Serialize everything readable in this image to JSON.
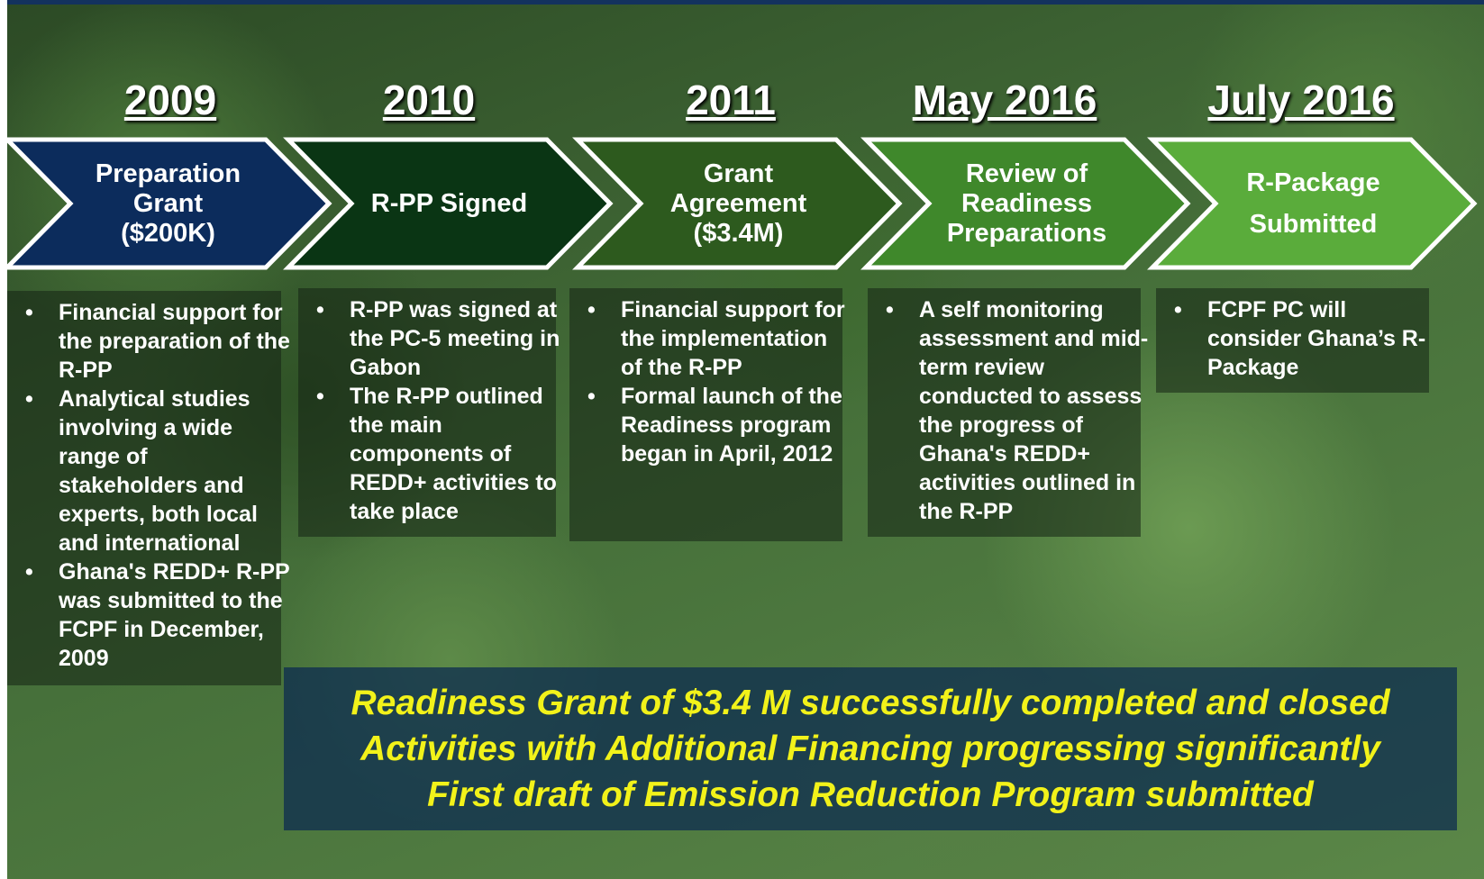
{
  "stages": [
    {
      "year": "2009",
      "title_lines": [
        "Preparation",
        "Grant",
        "($200K)"
      ],
      "color": "#0c2c5c",
      "bullets": [
        "Financial support for the preparation of the R-PP",
        "Analytical studies involving a wide range of stakeholders and experts, both local and international",
        "Ghana's REDD+ R-PP was submitted to the FCPF in December, 2009"
      ]
    },
    {
      "year": "2010",
      "title_lines": [
        "R-PP Signed"
      ],
      "color": "#0a3514",
      "bullets": [
        "R-PP was signed at the PC-5 meeting in Gabon",
        "The R-PP outlined the main components of REDD+ activities to take place"
      ]
    },
    {
      "year": "2011",
      "title_lines": [
        "Grant",
        "Agreement",
        "($3.4M)"
      ],
      "color": "#2d5a1e",
      "bullets": [
        "Financial support for the implementation of the R-PP",
        "Formal launch of the Readiness program began in April, 2012"
      ]
    },
    {
      "year": "May 2016",
      "title_lines": [
        "Review of",
        "Readiness",
        "Preparations"
      ],
      "color": "#3f882b",
      "bullets": [
        "A self monitoring assessment and mid-term review conducted to assess the progress of Ghana's REDD+ activities outlined in the R-PP"
      ]
    },
    {
      "year": "July 2016",
      "title_lines": [
        "R-Package",
        "Submitted"
      ],
      "color": "#5aac3b",
      "bullets": [
        "FCPF PC will consider Ghana’s R-Package"
      ]
    }
  ],
  "banner": {
    "lines": [
      "Readiness Grant of $3.4 M successfully completed and closed",
      "Activities with Additional Financing progressing significantly",
      "First draft of Emission Reduction Program submitted"
    ]
  }
}
